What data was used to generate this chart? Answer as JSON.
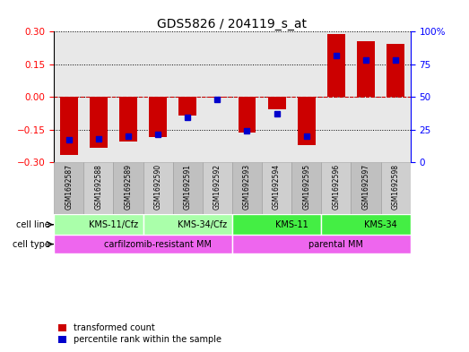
{
  "title": "GDS5826 / 204119_s_at",
  "samples": [
    "GSM1692587",
    "GSM1692588",
    "GSM1692589",
    "GSM1692590",
    "GSM1692591",
    "GSM1692592",
    "GSM1692593",
    "GSM1692594",
    "GSM1692595",
    "GSM1692596",
    "GSM1692597",
    "GSM1692598"
  ],
  "transformed_count": [
    -0.265,
    -0.235,
    -0.205,
    -0.185,
    -0.085,
    -0.005,
    -0.165,
    -0.055,
    -0.22,
    0.29,
    0.255,
    0.245
  ],
  "percentile_rank": [
    17,
    18,
    20,
    21,
    34,
    48,
    24,
    37,
    20,
    82,
    78,
    78
  ],
  "ylim_left": [
    -0.3,
    0.3
  ],
  "ylim_right": [
    0,
    100
  ],
  "yticks_left": [
    -0.3,
    -0.15,
    0,
    0.15,
    0.3
  ],
  "yticks_right": [
    0,
    25,
    50,
    75,
    100
  ],
  "cell_line_groups": [
    {
      "label": "KMS-11/Cfz",
      "start": 0,
      "end": 3,
      "color": "#AAFFAA"
    },
    {
      "label": "KMS-34/Cfz",
      "start": 3,
      "end": 6,
      "color": "#AAFFAA"
    },
    {
      "label": "KMS-11",
      "start": 6,
      "end": 9,
      "color": "#44EE44"
    },
    {
      "label": "KMS-34",
      "start": 9,
      "end": 12,
      "color": "#44EE44"
    }
  ],
  "cell_type_groups": [
    {
      "label": "carfilzomib-resistant MM",
      "start": 0,
      "end": 6,
      "color": "#EE66EE"
    },
    {
      "label": "parental MM",
      "start": 6,
      "end": 12,
      "color": "#EE66EE"
    }
  ],
  "bar_color": "#CC0000",
  "dot_color": "#0000CC",
  "zero_line_color": "#CC0000",
  "plot_bg_color": "#E8E8E8",
  "legend_items": [
    "transformed count",
    "percentile rank within the sample"
  ]
}
